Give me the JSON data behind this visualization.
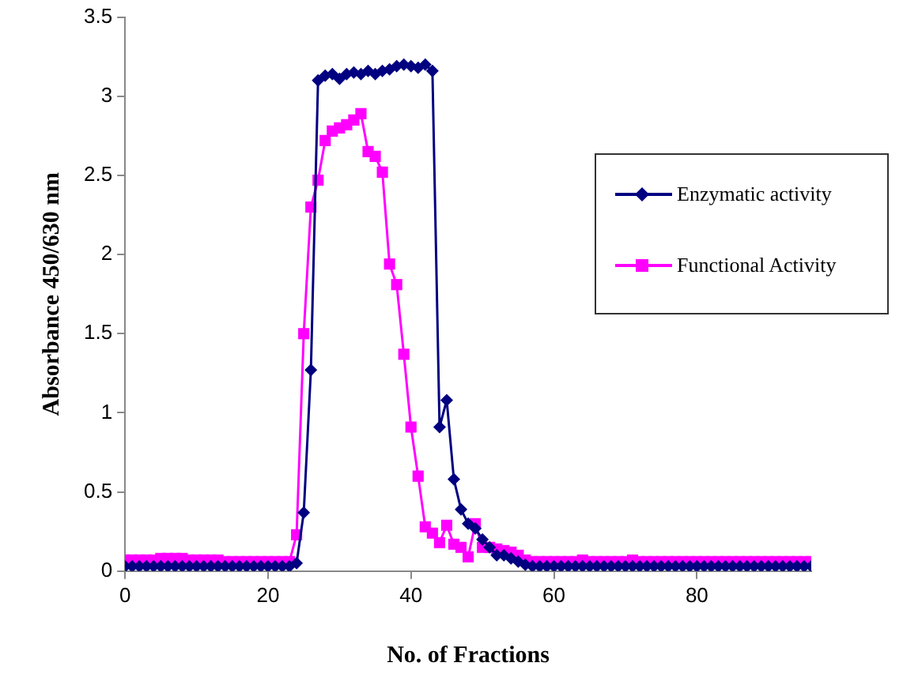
{
  "chart_data": {
    "type": "line",
    "xlabel": "No. of Fractions",
    "ylabel": "Absorbance 450/630 nm",
    "x": [
      0,
      1,
      2,
      3,
      4,
      5,
      6,
      7,
      8,
      9,
      10,
      11,
      12,
      13,
      14,
      15,
      16,
      17,
      18,
      19,
      20,
      21,
      22,
      23,
      24,
      25,
      26,
      27,
      28,
      29,
      30,
      31,
      32,
      33,
      34,
      35,
      36,
      37,
      38,
      39,
      40,
      41,
      42,
      43,
      44,
      45,
      46,
      47,
      48,
      49,
      50,
      51,
      52,
      53,
      54,
      55,
      56,
      57,
      58,
      59,
      60,
      61,
      62,
      63,
      64,
      65,
      66,
      67,
      68,
      69,
      70,
      71,
      72,
      73,
      74,
      75,
      76,
      77,
      78,
      79,
      80,
      81,
      82,
      83,
      84,
      85,
      86,
      87,
      88,
      89,
      90,
      91,
      92,
      93,
      94,
      95,
      96
    ],
    "series": [
      {
        "name": "Enzymatic activity",
        "color": "#000080",
        "marker": "diamond",
        "values": [
          0.03,
          0.03,
          0.03,
          0.03,
          0.03,
          0.03,
          0.03,
          0.03,
          0.03,
          0.03,
          0.03,
          0.03,
          0.03,
          0.03,
          0.03,
          0.03,
          0.03,
          0.03,
          0.03,
          0.03,
          0.03,
          0.03,
          0.03,
          0.03,
          0.05,
          0.37,
          1.27,
          3.1,
          3.13,
          3.14,
          3.11,
          3.14,
          3.15,
          3.14,
          3.16,
          3.14,
          3.16,
          3.17,
          3.19,
          3.2,
          3.19,
          3.18,
          3.2,
          3.16,
          0.91,
          1.08,
          0.58,
          0.39,
          0.3,
          0.27,
          0.2,
          0.15,
          0.1,
          0.1,
          0.08,
          0.06,
          0.04,
          0.03,
          0.03,
          0.03,
          0.03,
          0.03,
          0.03,
          0.03,
          0.03,
          0.03,
          0.03,
          0.03,
          0.03,
          0.03,
          0.03,
          0.03,
          0.03,
          0.03,
          0.03,
          0.03,
          0.03,
          0.03,
          0.03,
          0.03,
          0.03,
          0.03,
          0.03,
          0.03,
          0.03,
          0.03,
          0.03,
          0.03,
          0.03,
          0.03,
          0.03,
          0.03,
          0.03,
          0.03,
          0.03,
          0.03,
          0.03
        ]
      },
      {
        "name": "Functional Activity",
        "color": "#ff00ff",
        "marker": "square",
        "values": [
          0.07,
          0.07,
          0.07,
          0.07,
          0.07,
          0.08,
          0.08,
          0.08,
          0.08,
          0.07,
          0.07,
          0.07,
          0.07,
          0.07,
          0.06,
          0.06,
          0.06,
          0.06,
          0.06,
          0.06,
          0.06,
          0.06,
          0.06,
          0.06,
          0.23,
          1.5,
          2.3,
          2.47,
          2.72,
          2.78,
          2.8,
          2.82,
          2.85,
          2.89,
          2.65,
          2.62,
          2.52,
          1.94,
          1.81,
          1.37,
          0.91,
          0.6,
          0.28,
          0.24,
          0.18,
          0.29,
          0.17,
          0.15,
          0.09,
          0.3,
          0.15,
          0.15,
          0.14,
          0.13,
          0.12,
          0.1,
          0.07,
          0.06,
          0.06,
          0.06,
          0.06,
          0.06,
          0.06,
          0.06,
          0.07,
          0.06,
          0.06,
          0.06,
          0.06,
          0.06,
          0.06,
          0.07,
          0.06,
          0.06,
          0.06,
          0.06,
          0.06,
          0.06,
          0.06,
          0.06,
          0.06,
          0.06,
          0.06,
          0.06,
          0.06,
          0.06,
          0.06,
          0.06,
          0.06,
          0.06,
          0.06,
          0.06,
          0.06,
          0.06,
          0.06,
          0.06,
          0.06
        ]
      }
    ],
    "xlim": [
      0,
      96
    ],
    "xticks": [
      0,
      20,
      40,
      60,
      80
    ],
    "ylim": [
      0,
      3.5
    ],
    "yticks": [
      0,
      0.5,
      1,
      1.5,
      2,
      2.5,
      3,
      3.5
    ],
    "grid": false,
    "legend": "right",
    "line_style": "solid"
  }
}
